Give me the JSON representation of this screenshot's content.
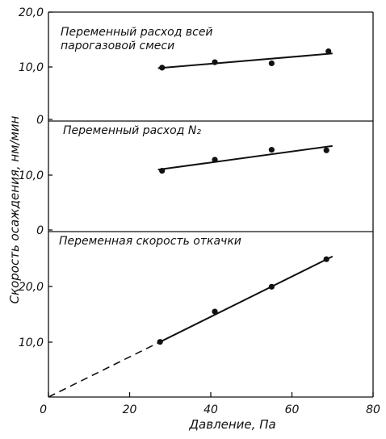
{
  "chart_data": {
    "type": "scatter",
    "xlabel": "Давление, Па",
    "ylabel": "Скорость осаждения, нм/мин",
    "x_ticks": [
      "0",
      "20",
      "40",
      "60",
      "80"
    ],
    "xlim": [
      0,
      80
    ],
    "panels": [
      {
        "title_lines": [
          "Переменный расход всей",
          "парогазовой смеси"
        ],
        "y_ticks": [
          "20,0",
          "10,0",
          "0"
        ],
        "ylim": [
          0,
          20
        ],
        "points": [
          [
            28,
            9.8
          ],
          [
            41,
            10.8
          ],
          [
            55,
            10.6
          ],
          [
            69,
            12.8
          ]
        ],
        "fit": {
          "x": [
            27,
            70
          ],
          "y": [
            9.7,
            12.4
          ]
        }
      },
      {
        "title_lines": [
          "Переменный расход N₂"
        ],
        "y_ticks": [
          "10,0",
          "0"
        ],
        "ylim": [
          0,
          20
        ],
        "points": [
          [
            28,
            11.0
          ],
          [
            41,
            13.0
          ],
          [
            55,
            14.8
          ],
          [
            68.5,
            14.7
          ]
        ],
        "fit": {
          "x": [
            27,
            70
          ],
          "y": [
            11.2,
            15.5
          ]
        }
      },
      {
        "title_lines": [
          "Переменная скорость откачки"
        ],
        "y_ticks": [
          "20,0",
          "10,0"
        ],
        "ylim": [
          0,
          30
        ],
        "points": [
          [
            27.5,
            10.0
          ],
          [
            41,
            15.5
          ],
          [
            55,
            20.0
          ],
          [
            68.5,
            25.0
          ]
        ],
        "fit": {
          "x": [
            27.5,
            70
          ],
          "y": [
            10.0,
            25.5
          ]
        },
        "extrapolation": {
          "x": [
            0,
            27.5
          ],
          "y": [
            0,
            10.0
          ]
        }
      }
    ]
  }
}
